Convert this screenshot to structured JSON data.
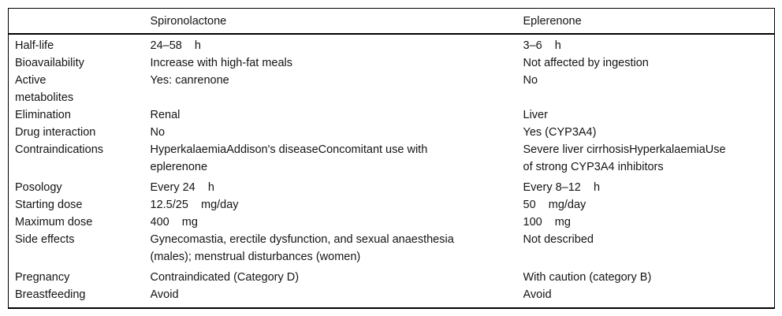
{
  "page": {
    "background_color": "#ffffff",
    "text_color": "#141414",
    "rule_color": "#000000"
  },
  "table": {
    "columns": [
      "",
      "Spironolactone",
      "Eplerenone"
    ],
    "rows": [
      {
        "label": "Half-life",
        "spironolactone": "24–58    h",
        "eplerenone": "3–6    h"
      },
      {
        "label": "Bioavailability",
        "spironolactone": "Increase with high-fat meals",
        "eplerenone": "Not affected by ingestion"
      },
      {
        "label": "Active\nmetabolites",
        "spironolactone": "Yes: canrenone",
        "eplerenone": "No"
      },
      {
        "label": "Elimination",
        "spironolactone": "Renal",
        "eplerenone": "Liver"
      },
      {
        "label": "Drug interaction",
        "spironolactone": "No",
        "eplerenone": "Yes (CYP3A4)"
      },
      {
        "label": "Contraindications",
        "spironolactone": "HyperkalaemiaAddison's diseaseConcomitant use with\neplerenone",
        "eplerenone": "Severe liver cirrhosisHyperkalaemiaUse\nof strong CYP3A4 inhibitors"
      },
      {
        "label": "Posology",
        "spironolactone": "Every 24    h",
        "eplerenone": "Every 8–12    h"
      },
      {
        "label": "Starting dose",
        "spironolactone": "12.5/25    mg/day",
        "eplerenone": "50    mg/day"
      },
      {
        "label": "Maximum dose",
        "spironolactone": "400    mg",
        "eplerenone": "100    mg"
      },
      {
        "label": "Side effects",
        "spironolactone": "Gynecomastia, erectile dysfunction, and sexual anaesthesia\n(males); menstrual disturbances (women)",
        "eplerenone": "Not described"
      },
      {
        "label": "Pregnancy",
        "spironolactone": "Contraindicated (Category D)",
        "eplerenone": "With caution (category B)"
      },
      {
        "label": "Breastfeeding",
        "spironolactone": "Avoid",
        "eplerenone": "Avoid"
      }
    ]
  }
}
